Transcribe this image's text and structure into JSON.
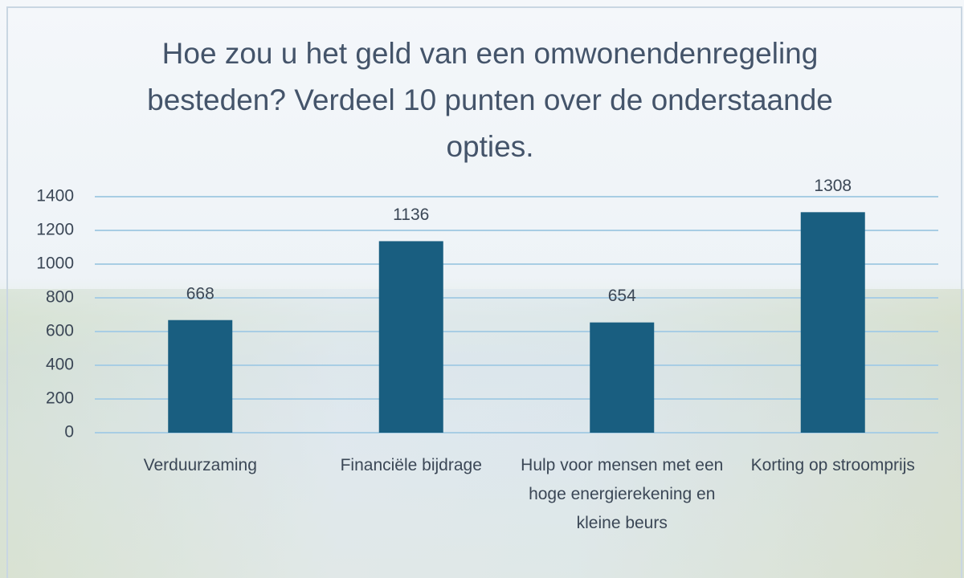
{
  "chart_data": {
    "type": "bar",
    "title": "Hoe zou u het geld van een omwonendenregeling besteden? Verdeel 10 punten over de onderstaande opties.",
    "categories": [
      "Verduurzaming",
      "Financiële bijdrage",
      "Hulp voor mensen met een hoge energierekening en kleine beurs",
      "Korting op stroomprijs"
    ],
    "values": [
      668,
      1136,
      654,
      1308
    ],
    "color": "#195e80",
    "ylim": [
      0,
      1400
    ],
    "yticks": [
      0,
      200,
      400,
      600,
      800,
      1000,
      1200,
      1400
    ],
    "grid": true
  }
}
